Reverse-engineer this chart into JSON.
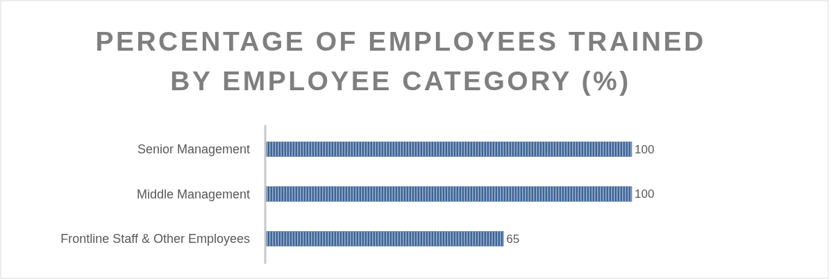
{
  "chart_data": {
    "type": "bar",
    "orientation": "horizontal",
    "title": "PERCENTAGE OF EMPLOYEES TRAINED BY EMPLOYEE CATEGORY (%)",
    "categories": [
      "Senior Management",
      "Middle Management",
      "Frontline Staff & Other Employees"
    ],
    "values": [
      100,
      100,
      65
    ],
    "color": "#3d6496",
    "data_labels": true
  }
}
